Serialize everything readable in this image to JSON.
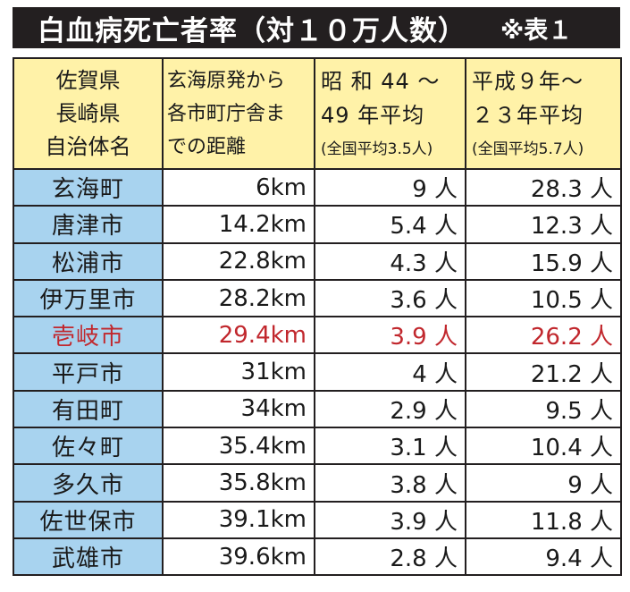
{
  "title": {
    "main": "白血病死亡者率（対１０万人数）",
    "note": "※表１"
  },
  "header": {
    "col1": [
      "佐賀県",
      "長崎県",
      "自治体名"
    ],
    "col2": [
      "玄海原発から",
      "各市町庁舎ま",
      "での距離"
    ],
    "col3": {
      "line1": "昭 和 44 〜",
      "line2": "49 年平均",
      "sub": "(全国平均3.5人)"
    },
    "col4": {
      "line1": "平成９年〜",
      "line2": "２３年平均",
      "sub": "(全国平均5.7人)"
    }
  },
  "rows": [
    {
      "name": "玄海町",
      "distance": "6km",
      "rate_s44_49": "9 人",
      "rate_h9_23": "28.3 人"
    },
    {
      "name": "唐津市",
      "distance": "14.2km",
      "rate_s44_49": "5.4 人",
      "rate_h9_23": "12.3 人"
    },
    {
      "name": "松浦市",
      "distance": "22.8km",
      "rate_s44_49": "4.3 人",
      "rate_h9_23": "15.9 人"
    },
    {
      "name": "伊万里市",
      "distance": "28.2km",
      "rate_s44_49": "3.6 人",
      "rate_h9_23": "10.5 人"
    },
    {
      "name": "壱岐市",
      "distance": "29.4km",
      "rate_s44_49": "3.9 人",
      "rate_h9_23": "26.2 人"
    },
    {
      "name": "平戸市",
      "distance": "31km",
      "rate_s44_49": "4 人",
      "rate_h9_23": "21.2 人"
    },
    {
      "name": "有田町",
      "distance": "34km",
      "rate_s44_49": "2.9 人",
      "rate_h9_23": "9.5 人"
    },
    {
      "name": "佐々町",
      "distance": "35.4km",
      "rate_s44_49": "3.1 人",
      "rate_h9_23": "10.4 人"
    },
    {
      "name": "多久市",
      "distance": "35.8km",
      "rate_s44_49": "3.8 人",
      "rate_h9_23": "9 人"
    },
    {
      "name": "佐世保市",
      "distance": "39.1km",
      "rate_s44_49": "3.9 人",
      "rate_h9_23": "11.8 人"
    },
    {
      "name": "武雄市",
      "distance": "39.6km",
      "rate_s44_49": "2.8 人",
      "rate_h9_23": "9.4 人"
    }
  ],
  "colors": {
    "title_bg": "#231f20",
    "header_bg": "#fff2a8",
    "name_bg": "#a8d3ef",
    "highlight_text": "#c1272d"
  },
  "highlight_row_name": "壱岐市"
}
